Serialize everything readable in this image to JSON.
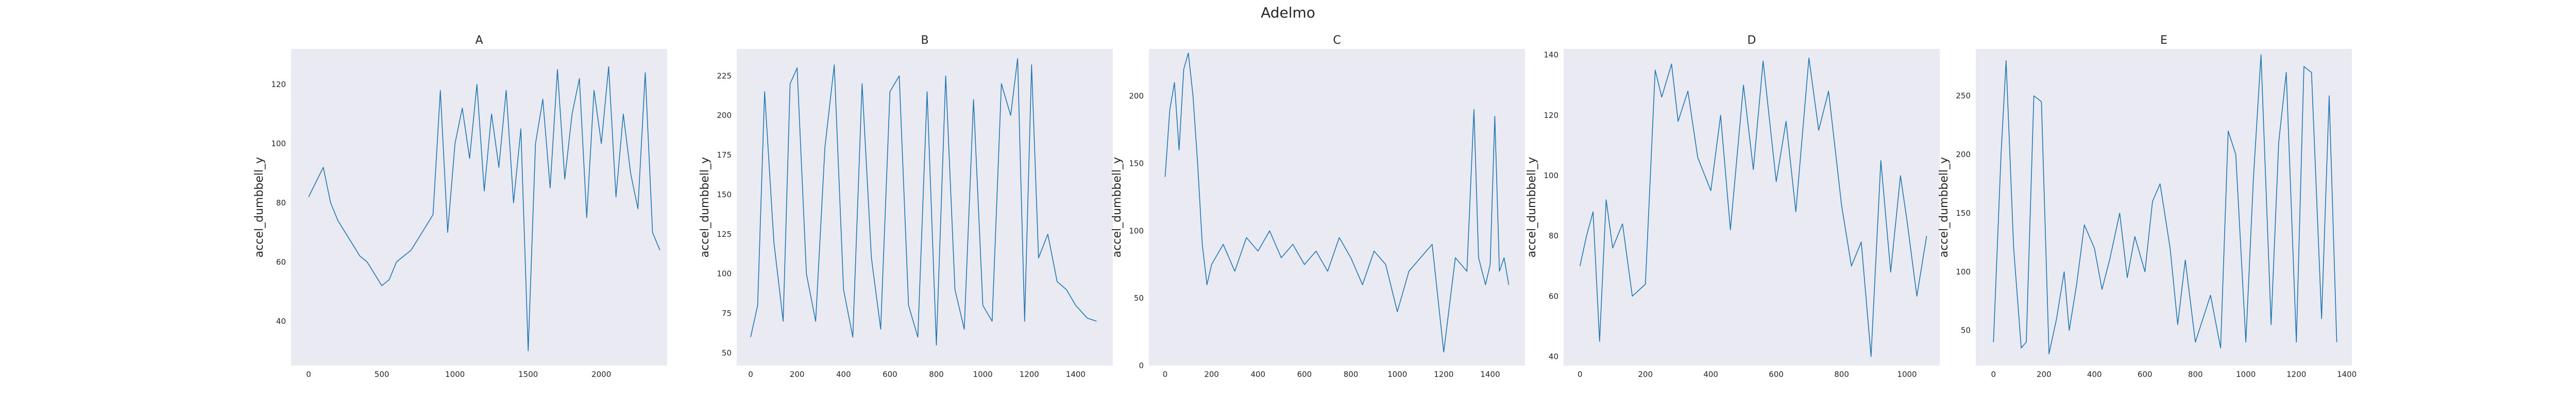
{
  "figure": {
    "title": "Adelmo"
  },
  "chart_data": [
    {
      "type": "line",
      "title": "A",
      "xlabel": "",
      "ylabel": "accel_dumbbell_y",
      "xlim": [
        -120,
        2450
      ],
      "ylim": [
        25,
        132
      ],
      "xticks": [
        0,
        500,
        1000,
        1500,
        2000
      ],
      "yticks": [
        40,
        60,
        80,
        100,
        120
      ],
      "grid": false,
      "series": [
        {
          "x": [
            0,
            60,
            100,
            150,
            200,
            250,
            300,
            350,
            400,
            450,
            500,
            550,
            600,
            650,
            700,
            750,
            800,
            850,
            900,
            950,
            1000,
            1050,
            1100,
            1150,
            1200,
            1250,
            1300,
            1350,
            1400,
            1450,
            1500,
            1550,
            1600,
            1650,
            1700,
            1750,
            1800,
            1850,
            1900,
            1950,
            2000,
            2050,
            2100,
            2150,
            2200,
            2250,
            2300,
            2350,
            2400
          ],
          "y": [
            82,
            88,
            92,
            80,
            74,
            70,
            66,
            62,
            60,
            56,
            52,
            54,
            60,
            62,
            64,
            68,
            72,
            76,
            118,
            70,
            100,
            112,
            95,
            120,
            84,
            110,
            92,
            118,
            80,
            105,
            30,
            100,
            115,
            85,
            125,
            88,
            110,
            122,
            75,
            118,
            100,
            126,
            82,
            110,
            90,
            78,
            124,
            70,
            64
          ]
        }
      ]
    },
    {
      "type": "line",
      "title": "B",
      "xlabel": "",
      "ylabel": "accel_dumbbell_y",
      "xlim": [
        -60,
        1560
      ],
      "ylim": [
        42,
        242
      ],
      "xticks": [
        0,
        200,
        400,
        600,
        800,
        1000,
        1200,
        1400
      ],
      "yticks": [
        50,
        75,
        100,
        125,
        150,
        175,
        200,
        225
      ],
      "grid": false,
      "series": [
        {
          "x": [
            0,
            30,
            60,
            100,
            140,
            170,
            200,
            240,
            280,
            320,
            360,
            400,
            440,
            480,
            520,
            560,
            600,
            640,
            680,
            720,
            760,
            800,
            840,
            880,
            920,
            960,
            1000,
            1040,
            1080,
            1120,
            1150,
            1180,
            1210,
            1240,
            1280,
            1320,
            1360,
            1400,
            1450,
            1490
          ],
          "y": [
            60,
            80,
            215,
            120,
            70,
            220,
            230,
            100,
            70,
            180,
            232,
            90,
            60,
            220,
            110,
            65,
            215,
            225,
            80,
            60,
            215,
            55,
            225,
            90,
            65,
            210,
            80,
            70,
            220,
            200,
            236,
            70,
            232,
            110,
            125,
            95,
            90,
            80,
            72,
            70
          ]
        }
      ]
    },
    {
      "type": "line",
      "title": "C",
      "xlabel": "",
      "ylabel": "accel_dumbbell_y",
      "xlim": [
        -70,
        1550
      ],
      "ylim": [
        0,
        235
      ],
      "xticks": [
        0,
        200,
        400,
        600,
        800,
        1000,
        1200,
        1400
      ],
      "yticks": [
        0,
        50,
        100,
        150,
        200
      ],
      "grid": false,
      "series": [
        {
          "x": [
            0,
            20,
            40,
            60,
            80,
            100,
            120,
            140,
            160,
            180,
            200,
            250,
            300,
            350,
            400,
            450,
            500,
            550,
            600,
            650,
            700,
            750,
            800,
            850,
            900,
            950,
            1000,
            1050,
            1100,
            1150,
            1200,
            1250,
            1300,
            1330,
            1350,
            1380,
            1400,
            1420,
            1440,
            1460,
            1480
          ],
          "y": [
            140,
            190,
            210,
            160,
            220,
            232,
            200,
            150,
            90,
            60,
            75,
            90,
            70,
            95,
            85,
            100,
            80,
            90,
            75,
            85,
            70,
            95,
            80,
            60,
            85,
            75,
            40,
            70,
            80,
            90,
            10,
            80,
            70,
            190,
            80,
            60,
            75,
            185,
            70,
            80,
            60
          ]
        }
      ]
    },
    {
      "type": "line",
      "title": "D",
      "xlabel": "",
      "ylabel": "accel_dumbbell_y",
      "xlim": [
        -50,
        1100
      ],
      "ylim": [
        37,
        142
      ],
      "xticks": [
        0,
        200,
        400,
        600,
        800,
        1000
      ],
      "yticks": [
        40,
        60,
        80,
        100,
        120,
        140
      ],
      "grid": false,
      "series": [
        {
          "x": [
            0,
            20,
            40,
            60,
            80,
            100,
            130,
            160,
            200,
            230,
            250,
            280,
            300,
            330,
            360,
            400,
            430,
            460,
            500,
            530,
            560,
            600,
            630,
            660,
            700,
            730,
            760,
            800,
            830,
            860,
            890,
            920,
            950,
            980,
            1000,
            1030,
            1060
          ],
          "y": [
            70,
            80,
            88,
            45,
            92,
            76,
            84,
            60,
            64,
            135,
            126,
            137,
            118,
            128,
            106,
            95,
            120,
            82,
            130,
            102,
            138,
            98,
            118,
            88,
            139,
            115,
            128,
            90,
            70,
            78,
            40,
            105,
            68,
            100,
            85,
            60,
            80
          ]
        }
      ]
    },
    {
      "type": "line",
      "title": "E",
      "xlabel": "",
      "ylabel": "accel_dumbbell_y",
      "xlim": [
        -70,
        1420
      ],
      "ylim": [
        20,
        290
      ],
      "xticks": [
        0,
        200,
        400,
        600,
        800,
        1000,
        1200,
        1400
      ],
      "yticks": [
        50,
        100,
        150,
        200,
        250
      ],
      "grid": false,
      "series": [
        {
          "x": [
            0,
            30,
            50,
            80,
            110,
            130,
            160,
            190,
            220,
            250,
            280,
            300,
            330,
            360,
            400,
            430,
            460,
            500,
            530,
            560,
            600,
            630,
            660,
            700,
            730,
            760,
            800,
            830,
            860,
            900,
            930,
            960,
            1000,
            1030,
            1060,
            1100,
            1130,
            1160,
            1200,
            1230,
            1260,
            1300,
            1330,
            1360
          ],
          "y": [
            40,
            200,
            280,
            120,
            35,
            40,
            250,
            245,
            30,
            60,
            100,
            50,
            90,
            140,
            120,
            85,
            110,
            150,
            95,
            130,
            100,
            160,
            175,
            120,
            55,
            110,
            40,
            60,
            80,
            35,
            220,
            200,
            40,
            180,
            285,
            55,
            210,
            270,
            40,
            275,
            270,
            60,
            250,
            40
          ]
        }
      ]
    }
  ]
}
